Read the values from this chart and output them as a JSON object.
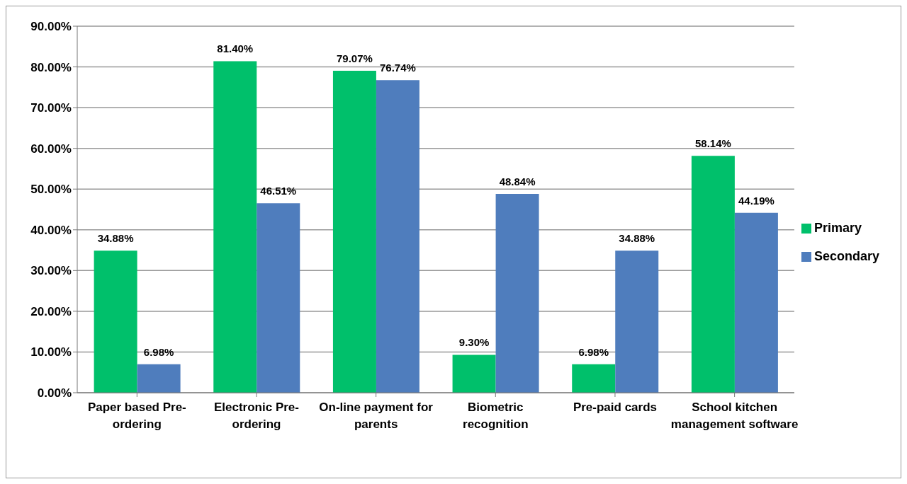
{
  "chart_data": {
    "type": "bar",
    "categories": [
      "Paper based Pre-ordering",
      "Electronic Pre-ordering",
      "On-line payment for parents",
      "Biometric recognition",
      "Pre-paid cards",
      "School kitchen management software"
    ],
    "series": [
      {
        "name": "Primary",
        "color": "#00c06b",
        "values": [
          34.88,
          81.4,
          79.07,
          9.3,
          6.98,
          58.14
        ],
        "value_labels": [
          "34.88%",
          "81.40%",
          "79.07%",
          "9.30%",
          "6.98%",
          "58.14%"
        ]
      },
      {
        "name": "Secondary",
        "color": "#4f7dbd",
        "values": [
          6.98,
          46.51,
          76.74,
          48.84,
          34.88,
          44.19
        ],
        "value_labels": [
          "6.98%",
          "46.51%",
          "76.74%",
          "48.84%",
          "34.88%",
          "44.19%"
        ]
      }
    ],
    "ylim": [
      0,
      90
    ],
    "yticks": [
      {
        "value": 0,
        "label": "0.00%"
      },
      {
        "value": 10,
        "label": "10.00%"
      },
      {
        "value": 20,
        "label": "20.00%"
      },
      {
        "value": 30,
        "label": "30.00%"
      },
      {
        "value": 40,
        "label": "40.00%"
      },
      {
        "value": 50,
        "label": "50.00%"
      },
      {
        "value": 60,
        "label": "60.00%"
      },
      {
        "value": 70,
        "label": "70.00%"
      },
      {
        "value": 80,
        "label": "80.00%"
      },
      {
        "value": 90,
        "label": "90.00%"
      }
    ],
    "grid": "y",
    "legend": "right"
  }
}
